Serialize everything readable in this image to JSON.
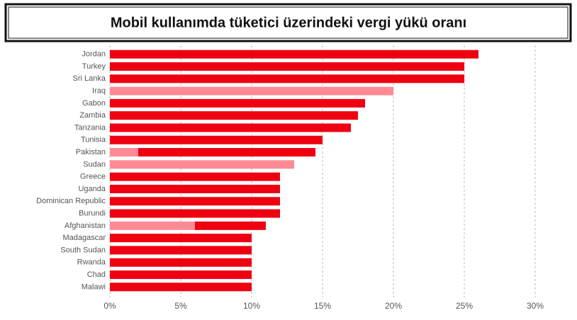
{
  "chart_data": {
    "type": "stacked-barh",
    "title": "Mobil kullanımda tüketici üzerindeki vergi yükü oranı",
    "categories": [
      "Jordan",
      "Turkey",
      "Sri Lanka",
      "Iraq",
      "Gabon",
      "Zambia",
      "Tanzania",
      "Tunisia",
      "Pakistan",
      "Sudan",
      "Greece",
      "Uganda",
      "Dominican Republic",
      "Burundi",
      "Afghanistan",
      "Madagascar",
      "South Sudan",
      "Rwanda",
      "Chad",
      "Malawi"
    ],
    "series": [
      {
        "color": "#ff8a95",
        "values": [
          null,
          null,
          null,
          20,
          null,
          null,
          null,
          null,
          2,
          13,
          null,
          null,
          null,
          null,
          6,
          null,
          null,
          null,
          null,
          null
        ]
      },
      {
        "color": "#ee0011",
        "values": [
          26,
          25,
          25,
          null,
          18,
          17.5,
          17,
          15,
          12.5,
          null,
          12,
          12,
          12,
          12,
          5,
          10,
          10,
          10,
          10,
          10
        ]
      }
    ],
    "xlim": [
      0,
      30
    ],
    "xticks": [
      {
        "value": 0,
        "label": "0%"
      },
      {
        "value": 5,
        "label": "5%"
      },
      {
        "value": 10,
        "label": "10%"
      },
      {
        "value": 15,
        "label": "15%"
      },
      {
        "value": 20,
        "label": "20%"
      },
      {
        "value": 25,
        "label": "25%"
      },
      {
        "value": 30,
        "label": "30%"
      }
    ],
    "grid": true
  }
}
